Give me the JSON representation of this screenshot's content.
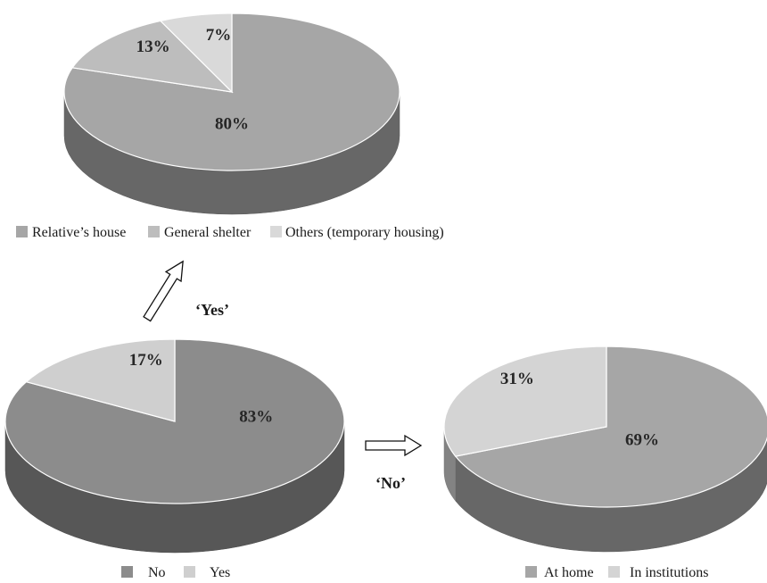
{
  "chart_data": [
    {
      "type": "pie",
      "title": "",
      "series": [
        {
          "values": [
            80,
            13,
            7
          ]
        }
      ],
      "categories": [
        "Relative’s house",
        "General shelter",
        "Others (temporary housing)"
      ],
      "data_labels": [
        "80%",
        "13%",
        "7%"
      ],
      "colors": [
        "#a6a6a6",
        "#bdbdbd",
        "#d9d9d9"
      ],
      "legend_position": "bottom"
    },
    {
      "type": "pie",
      "title": "",
      "series": [
        {
          "values": [
            83,
            17
          ]
        }
      ],
      "categories": [
        "No",
        "Yes"
      ],
      "data_labels": [
        "83%",
        "17%"
      ],
      "colors": [
        "#8c8c8c",
        "#cfcfcf"
      ],
      "legend_position": "bottom"
    },
    {
      "type": "pie",
      "title": "",
      "series": [
        {
          "values": [
            69,
            31
          ]
        }
      ],
      "categories": [
        "At home",
        "In institutions"
      ],
      "data_labels": [
        "69%",
        "31%"
      ],
      "colors": [
        "#a6a6a6",
        "#d4d4d4"
      ],
      "legend_position": "bottom"
    }
  ],
  "arrows": {
    "yes_label": "‘Yes’",
    "no_label": "‘No’"
  }
}
